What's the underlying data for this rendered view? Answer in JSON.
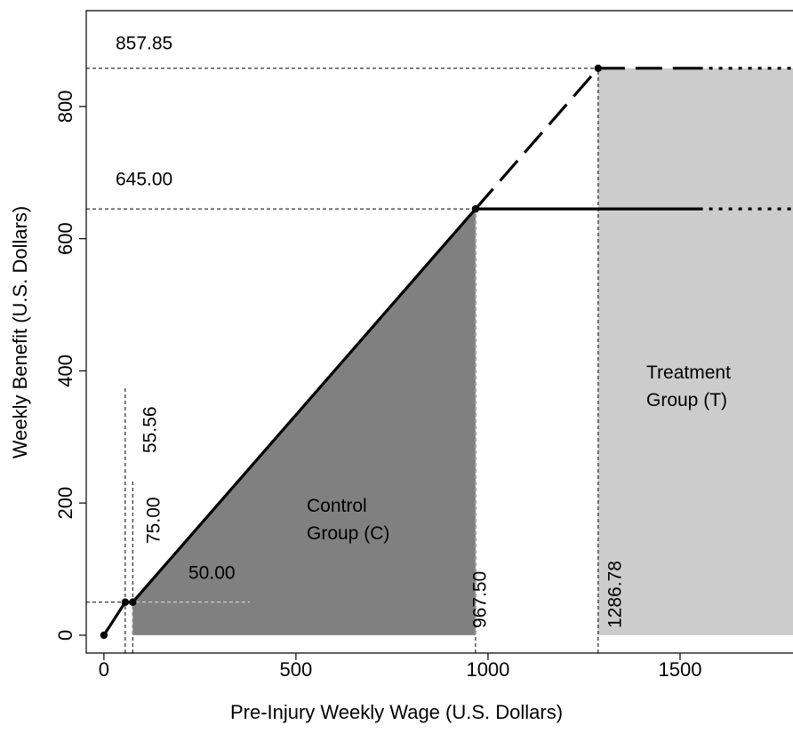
{
  "chart_data": {
    "type": "line",
    "x_label": "Pre-Injury Weekly Wage (U.S. Dollars)",
    "y_label": "Weekly Benefit (U.S. Dollars)",
    "xlim": [
      -46,
      1794
    ],
    "ylim": [
      -27,
      945
    ],
    "xticks": [
      0,
      500,
      1000,
      1500
    ],
    "yticks": [
      0,
      200,
      400,
      600,
      800
    ],
    "regions": [
      {
        "name": "Control Group (C)",
        "color": "#808080",
        "text_color": "#ffffff",
        "x": [
          75,
          75,
          967.5,
          967.5
        ],
        "values": [
          0,
          50,
          645,
          0
        ]
      },
      {
        "name": "Treatment Group (T)",
        "color": "#cccccc",
        "text_color": "#000000",
        "x": [
          1286.78,
          1286.78,
          1794,
          1794
        ],
        "values": [
          0,
          857.85,
          857.85,
          0
        ]
      }
    ],
    "reference_lines": [
      {
        "axis": "y",
        "value": 857.85,
        "label": "857.85",
        "to": 1286.78,
        "label_color": "#000000"
      },
      {
        "axis": "y",
        "value": 645,
        "label": "645.00",
        "to": 967.5,
        "label_color": "#000000"
      },
      {
        "axis": "y",
        "value": 50,
        "label": "50.00",
        "to": 380,
        "label_color": "#ffffff"
      },
      {
        "axis": "x",
        "value": 55.56,
        "label": "55.56",
        "to": 375,
        "label_color": "#000000"
      },
      {
        "axis": "x",
        "value": 75,
        "label": "75.00",
        "to": 235,
        "label_color": "#000000"
      },
      {
        "axis": "x",
        "value": 967.5,
        "label": "967.50",
        "to": 645,
        "label_color": "#000000"
      },
      {
        "axis": "x",
        "value": 1286.78,
        "label": "1286.78",
        "to": 857.85,
        "label_color": "#000000"
      }
    ],
    "series": [
      {
        "color": "#000000",
        "dash": "solid",
        "x": [
          0,
          55.56,
          75,
          967.5,
          1550
        ],
        "values": [
          0,
          50,
          50,
          645,
          645
        ]
      },
      {
        "color": "#000000",
        "dash": "dotted",
        "x": [
          1550,
          1794
        ],
        "values": [
          645,
          645
        ]
      },
      {
        "color": "#000000",
        "dash": "dashed",
        "x": [
          967.5,
          1286.78,
          1550
        ],
        "values": [
          645,
          857.85,
          857.85
        ]
      },
      {
        "color": "#000000",
        "dash": "dotted",
        "x": [
          1550,
          1794
        ],
        "values": [
          857.85,
          857.85
        ]
      }
    ],
    "points": {
      "x": [
        0,
        55.56,
        75,
        967.5,
        1286.78
      ],
      "values": [
        0,
        50,
        50,
        645,
        857.85
      ]
    }
  }
}
